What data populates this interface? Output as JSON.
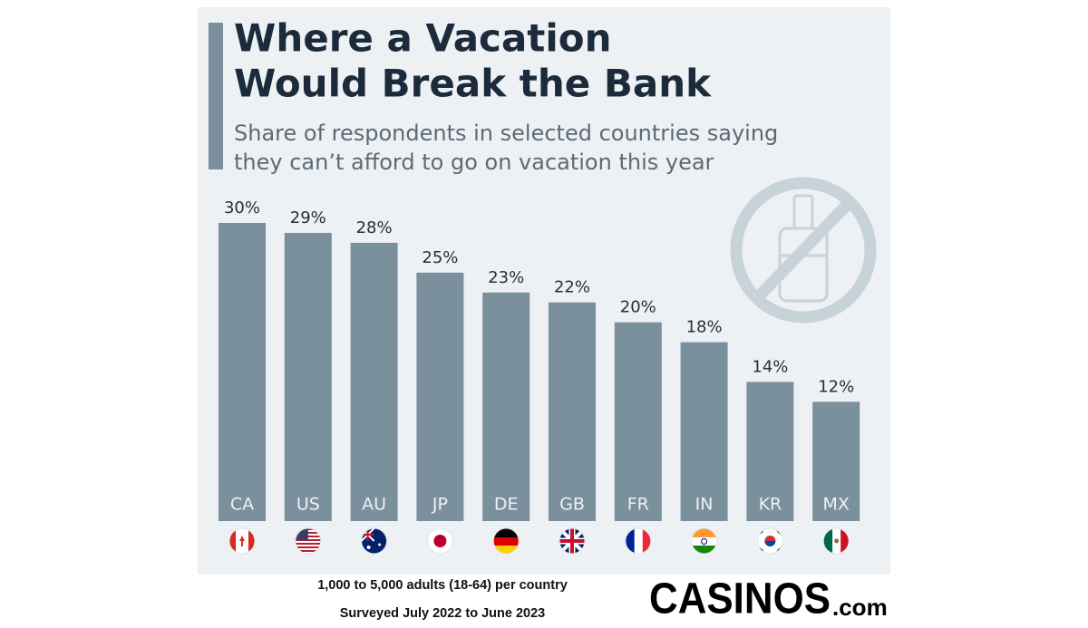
{
  "chart_data": {
    "type": "bar",
    "title": [
      "Where a Vacation",
      "Would Break the Bank"
    ],
    "subtitle": [
      "Share of respondents in selected countries saying",
      "they can’t afford to go on vacation this year"
    ],
    "categories": [
      "CA",
      "US",
      "AU",
      "JP",
      "DE",
      "GB",
      "FR",
      "IN",
      "KR",
      "MX"
    ],
    "values": [
      30,
      29,
      28,
      25,
      23,
      22,
      20,
      18,
      14,
      12
    ],
    "value_labels": [
      "30%",
      "29%",
      "28%",
      "25%",
      "23%",
      "22%",
      "20%",
      "18%",
      "14%",
      "12%"
    ],
    "color": "#7b909d"
  },
  "footer": [
    "1,000 to 5,000 adults (18-64) per country",
    "Surveyed July 2022 to June 2023"
  ],
  "logo": {
    "name": "CASINOS",
    "suffix": ".com"
  }
}
